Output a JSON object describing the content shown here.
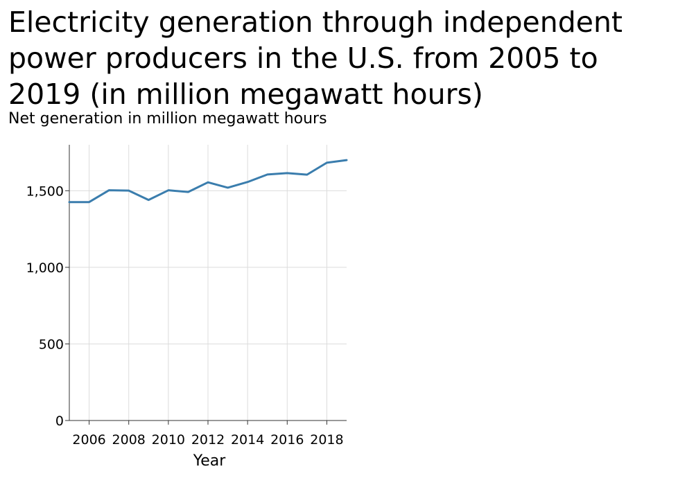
{
  "chart_data": {
    "type": "line",
    "title": "Electricity generation through independent power producers in the U.S. from 2005 to 2019 (in million megawatt hours)",
    "ylabel": "Net generation in million megawatt hours",
    "xlabel": "Year",
    "x": [
      2005,
      2006,
      2007,
      2008,
      2009,
      2010,
      2011,
      2012,
      2013,
      2014,
      2015,
      2016,
      2017,
      2018,
      2019
    ],
    "series": [
      {
        "name": "Net generation",
        "values": [
          1426,
          1426,
          1503,
          1501,
          1440,
          1503,
          1492,
          1555,
          1520,
          1557,
          1606,
          1615,
          1605,
          1683,
          1700
        ]
      }
    ],
    "xticks": [
      2006,
      2008,
      2010,
      2012,
      2014,
      2016,
      2018
    ],
    "yticks": [
      0,
      500,
      1000,
      1500
    ],
    "ytick_labels": [
      "0",
      "500",
      "1,000",
      "1,500"
    ],
    "xlim": [
      2005,
      2019
    ],
    "ylim": [
      0,
      1800
    ],
    "grid": true,
    "line_color": "#3a7dad"
  }
}
